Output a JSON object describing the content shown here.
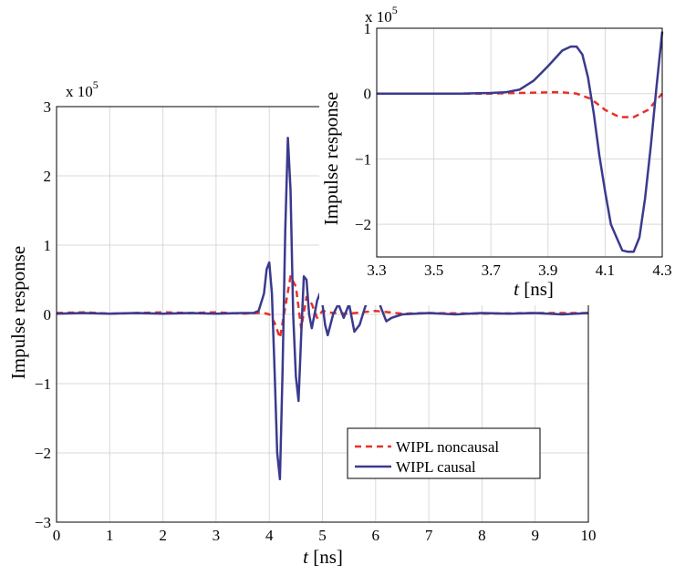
{
  "chart_data": [
    {
      "type": "line",
      "xlabel_italic": "t",
      "xlabel_unit": " [ns]",
      "ylabel": "Impulse response",
      "exponent_label": "x 10",
      "exponent_power": "5",
      "xlim": [
        0,
        10
      ],
      "ylim": [
        -3,
        3
      ],
      "xticks": [
        "0",
        "1",
        "2",
        "3",
        "4",
        "5",
        "6",
        "7",
        "8",
        "9",
        "10"
      ],
      "yticks": [
        "3",
        "2",
        "1",
        "0",
        "−1",
        "−2",
        "−3"
      ],
      "grid": true,
      "legend": {
        "placement": "bottom-right",
        "entries": [
          "WIPL noncausal",
          "WIPL causal"
        ]
      },
      "series": [
        {
          "name": "WIPL noncausal",
          "color": "#e8302a",
          "dash": "dashed",
          "x": [
            0,
            0.5,
            1,
            1.5,
            2,
            2.5,
            3,
            3.5,
            3.8,
            3.9,
            4.0,
            4.1,
            4.2,
            4.3,
            4.4,
            4.5,
            4.6,
            4.7,
            4.8,
            4.9,
            5.0,
            5.2,
            5.5,
            6.0,
            6.5,
            7,
            8,
            9,
            10
          ],
          "y": [
            0.02,
            0.03,
            0.01,
            0.02,
            0.03,
            0.02,
            0.03,
            0.01,
            0.02,
            0.02,
            0.0,
            -0.12,
            -0.34,
            0.1,
            0.55,
            0.4,
            -0.2,
            0.25,
            0.15,
            -0.05,
            0.05,
            0.02,
            0.01,
            0.05,
            0.01,
            0.02,
            0.01,
            0.02,
            0.02
          ]
        },
        {
          "name": "WIPL causal",
          "color": "#3a3a8e",
          "dash": "solid",
          "x": [
            0,
            0.5,
            1,
            1.5,
            2,
            2.5,
            3,
            3.5,
            3.7,
            3.8,
            3.9,
            3.95,
            4.0,
            4.05,
            4.1,
            4.15,
            4.2,
            4.25,
            4.3,
            4.35,
            4.4,
            4.45,
            4.5,
            4.55,
            4.6,
            4.65,
            4.7,
            4.75,
            4.8,
            4.85,
            4.9,
            4.95,
            5.0,
            5.05,
            5.1,
            5.2,
            5.3,
            5.4,
            5.5,
            5.6,
            5.7,
            5.8,
            5.9,
            6.0,
            6.1,
            6.2,
            6.3,
            6.5,
            7,
            7.5,
            8,
            8.5,
            9,
            9.5,
            10
          ],
          "y": [
            0.01,
            0.02,
            0.01,
            0.02,
            0.01,
            0.02,
            0.01,
            0.02,
            0.02,
            0.05,
            0.3,
            0.65,
            0.75,
            0.3,
            -0.8,
            -2.0,
            -2.38,
            -0.8,
            1.2,
            2.55,
            1.8,
            0.0,
            -0.9,
            -1.25,
            -0.3,
            0.55,
            0.5,
            0.0,
            -0.2,
            0.0,
            0.2,
            0.3,
            0.15,
            -0.15,
            -0.3,
            0.0,
            0.15,
            -0.05,
            0.15,
            -0.25,
            -0.15,
            0.1,
            0.3,
            0.35,
            0.1,
            -0.1,
            -0.05,
            0.0,
            0.02,
            0.0,
            0.02,
            0.01,
            0.02,
            0.0,
            0.02
          ]
        }
      ]
    },
    {
      "type": "line",
      "xlabel_italic": "t",
      "xlabel_unit": " [ns]",
      "ylabel": "Impulse response",
      "exponent_label": "x 10",
      "exponent_power": "5",
      "xlim": [
        3.3,
        4.3
      ],
      "ylim": [
        -2.5,
        1
      ],
      "xticks": [
        "3.3",
        "3.5",
        "3.7",
        "3.9",
        "4.1",
        "4.3"
      ],
      "yticks": [
        "1",
        "0",
        "−1",
        "−2"
      ],
      "grid": true,
      "series": [
        {
          "name": "WIPL noncausal",
          "color": "#e8302a",
          "dash": "dashed",
          "x": [
            3.3,
            3.4,
            3.5,
            3.6,
            3.7,
            3.8,
            3.9,
            3.95,
            4.0,
            4.05,
            4.1,
            4.15,
            4.2,
            4.25,
            4.3
          ],
          "y": [
            0.0,
            0.0,
            0.0,
            0.0,
            0.0,
            0.01,
            0.02,
            0.02,
            0.0,
            -0.08,
            -0.25,
            -0.36,
            -0.36,
            -0.25,
            0.0
          ]
        },
        {
          "name": "WIPL causal",
          "color": "#3a3a8e",
          "dash": "solid",
          "x": [
            3.3,
            3.4,
            3.5,
            3.6,
            3.7,
            3.75,
            3.8,
            3.85,
            3.9,
            3.95,
            3.98,
            4.0,
            4.02,
            4.04,
            4.06,
            4.08,
            4.1,
            4.12,
            4.14,
            4.16,
            4.18,
            4.2,
            4.22,
            4.24,
            4.26,
            4.28,
            4.3
          ],
          "y": [
            0.0,
            0.0,
            0.0,
            0.0,
            0.01,
            0.02,
            0.06,
            0.2,
            0.42,
            0.66,
            0.72,
            0.72,
            0.6,
            0.25,
            -0.3,
            -0.95,
            -1.5,
            -2.0,
            -2.2,
            -2.4,
            -2.42,
            -2.42,
            -2.2,
            -1.6,
            -0.8,
            0.1,
            0.95
          ]
        }
      ]
    }
  ]
}
